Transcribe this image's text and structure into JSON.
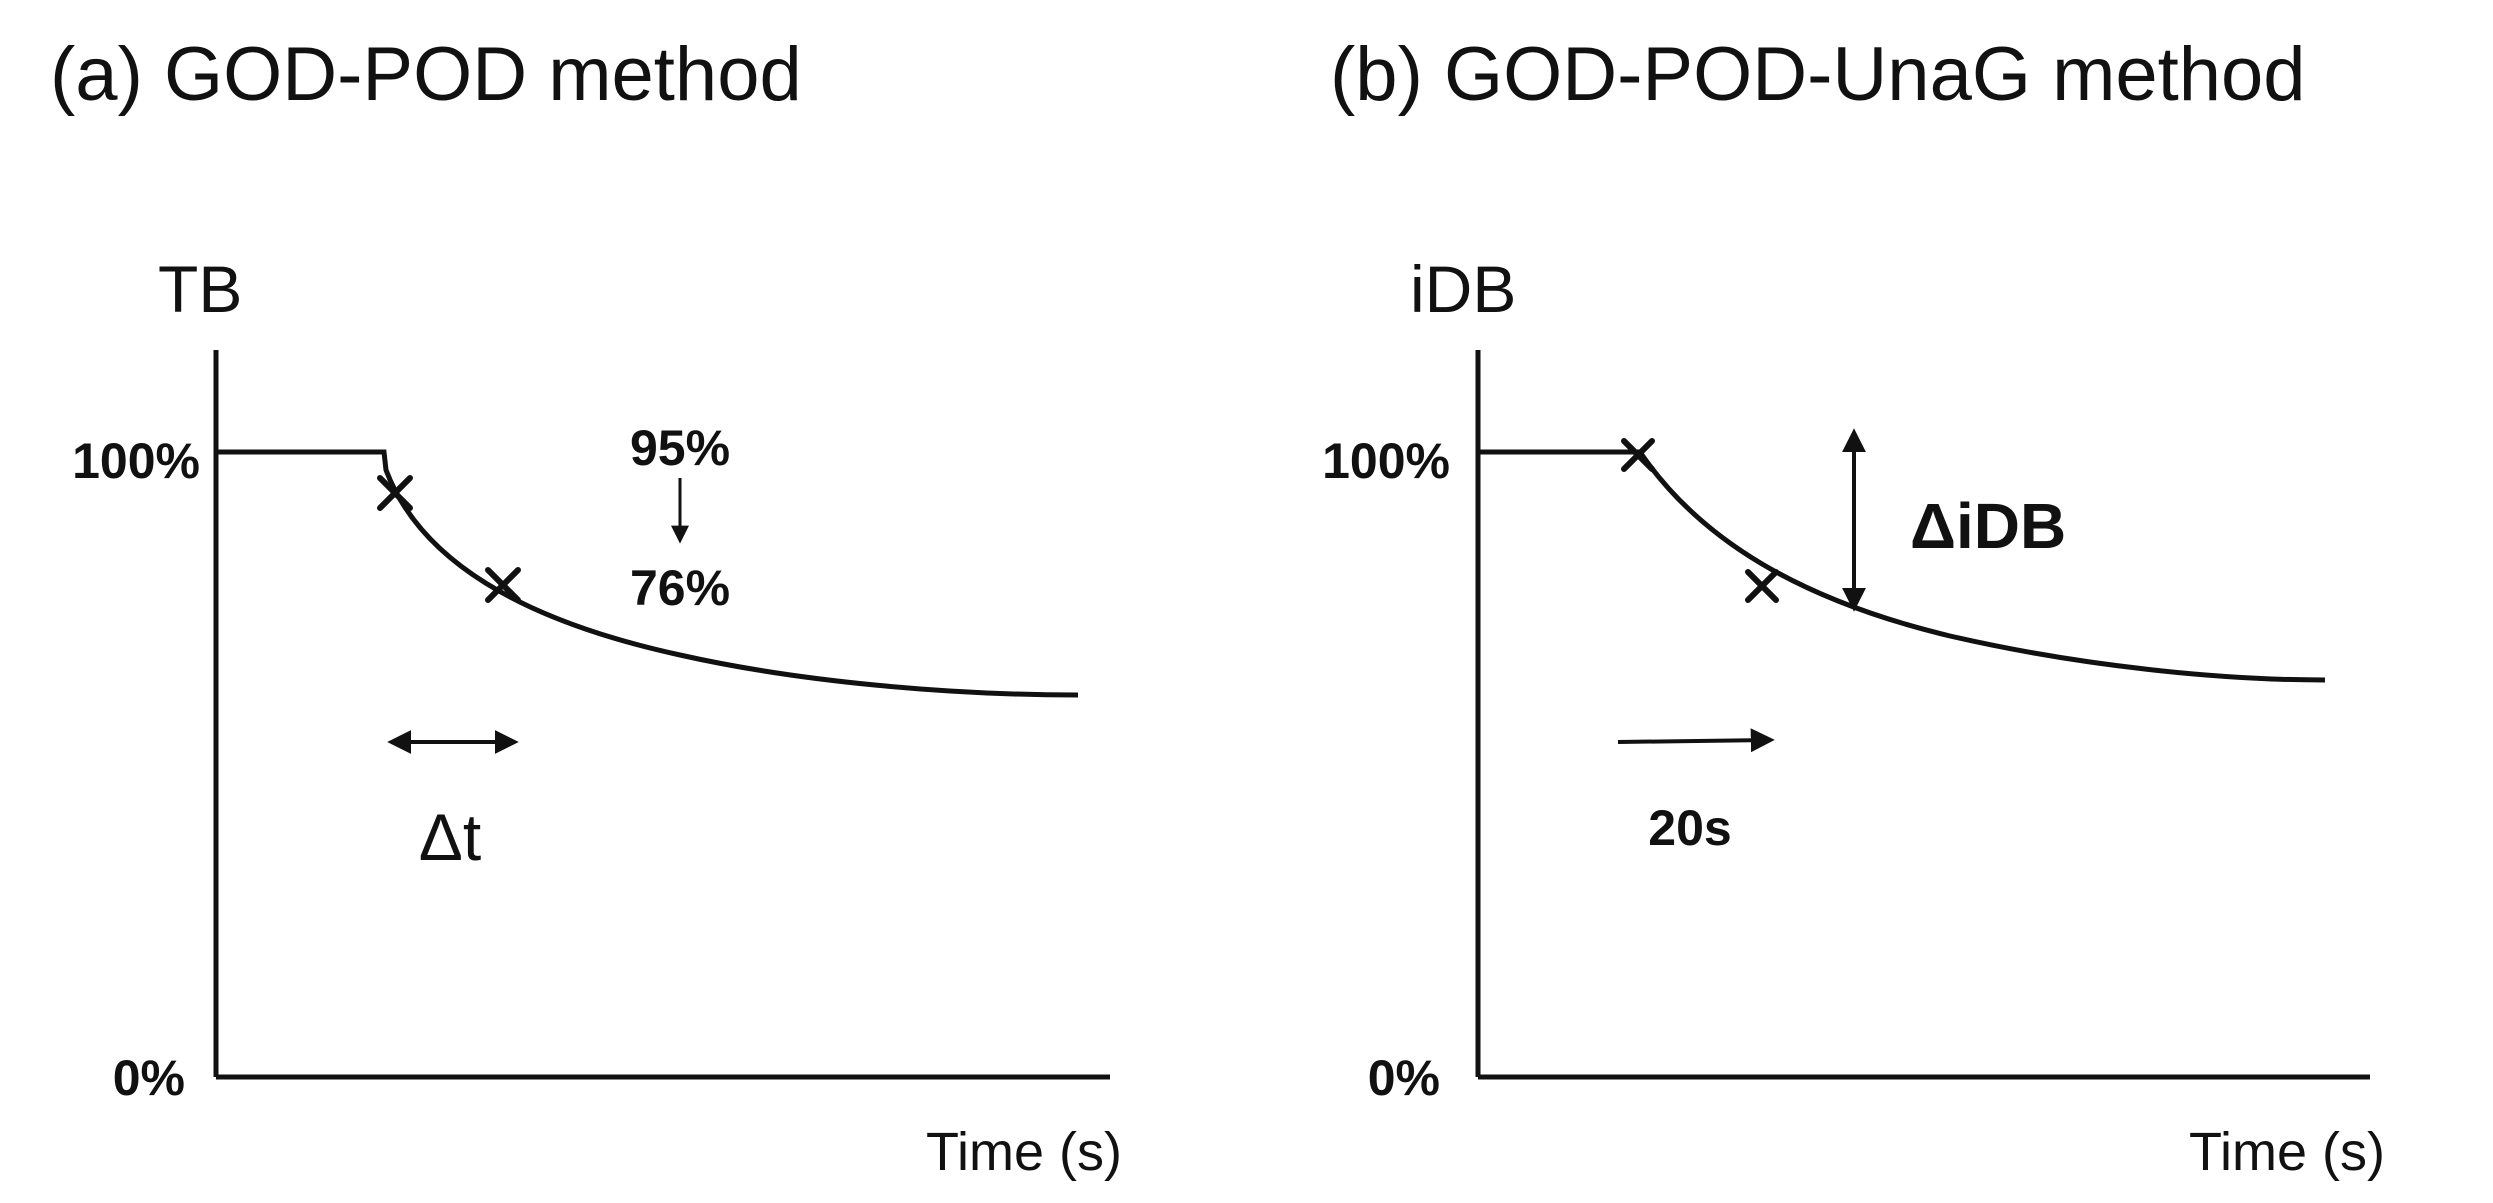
{
  "panels": [
    {
      "id": "a",
      "title": "(a)  GOD-POD method",
      "y_axis_label": "TB",
      "x_axis_label": "Time (s)",
      "y_ticks": [
        "100%",
        "0%"
      ],
      "annotation_from": "95%",
      "annotation_to": "76%",
      "measure_label": "Δt",
      "markers": [
        "95%",
        "76%"
      ]
    },
    {
      "id": "b",
      "title": "(b) GOD-POD-UnaG method",
      "y_axis_label": "iDB",
      "x_axis_label": "Time (s)",
      "y_ticks": [
        "100%",
        "0%"
      ],
      "measure_label": "ΔiDB",
      "interval_label": "20s",
      "markers": [
        "start",
        "20s"
      ]
    }
  ]
}
